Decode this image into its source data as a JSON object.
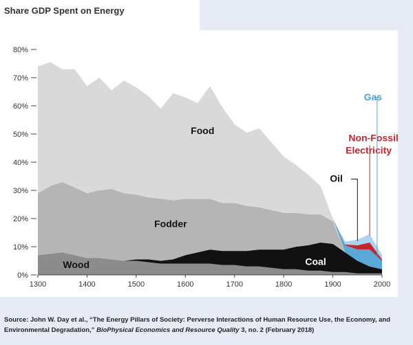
{
  "chart_data": {
    "type": "area",
    "title": "Share GDP Spent on Energy",
    "xlabel": "",
    "ylabel": "",
    "xlim": [
      1300,
      2000
    ],
    "ylim": [
      0,
      80
    ],
    "x_ticks": [
      1300,
      1400,
      1500,
      1600,
      1700,
      1800,
      1900,
      2000
    ],
    "y_ticks": [
      0,
      10,
      20,
      30,
      40,
      50,
      60,
      70,
      80
    ],
    "y_tick_labels": [
      "0%",
      "10%",
      "20%",
      "30%",
      "40%",
      "50%",
      "60%",
      "70%",
      "80%"
    ],
    "grid": false,
    "legend": "none",
    "stacked": true,
    "x": [
      1300,
      1325,
      1350,
      1375,
      1400,
      1425,
      1450,
      1475,
      1500,
      1525,
      1550,
      1575,
      1600,
      1625,
      1650,
      1675,
      1700,
      1725,
      1750,
      1775,
      1800,
      1825,
      1850,
      1875,
      1900,
      1925,
      1950,
      1975,
      2000
    ],
    "series": [
      {
        "name": "Wood",
        "color": "#8c8c8c",
        "values": [
          7,
          7.5,
          8,
          7,
          6,
          6,
          5.5,
          5,
          5,
          4.5,
          4,
          4,
          4,
          4,
          4,
          3.5,
          3.5,
          3,
          3,
          2.5,
          2,
          2,
          1.5,
          1.5,
          1,
          1,
          0.5,
          0.5,
          0.5
        ]
      },
      {
        "name": "Coal",
        "color": "#111111",
        "values": [
          0,
          0,
          0,
          0,
          0,
          0,
          0,
          0,
          0.5,
          1,
          1,
          1.5,
          3,
          4,
          5,
          5,
          5,
          5.5,
          6,
          6.5,
          7,
          8,
          9,
          10,
          10,
          7,
          4.5,
          2.5,
          1.5
        ]
      },
      {
        "name": "Fodder",
        "color": "#b5b5b5",
        "values": [
          22,
          24,
          25,
          24,
          23,
          24,
          25,
          24,
          23,
          22,
          22,
          21,
          20,
          19,
          18,
          17,
          17,
          16,
          15,
          14,
          13,
          12,
          11,
          10,
          8,
          0,
          0,
          0,
          0
        ]
      },
      {
        "name": "Food",
        "color": "#d9d9d9",
        "values": [
          45,
          44,
          40,
          42,
          38,
          40,
          35,
          40,
          38,
          36,
          32,
          38,
          36,
          34,
          40,
          34,
          28,
          26,
          28,
          24,
          20,
          17,
          14,
          10,
          1,
          0,
          0,
          0,
          0
        ]
      },
      {
        "name": "Oil",
        "color": "#5aa8d8",
        "values": [
          0,
          0,
          0,
          0,
          0,
          0,
          0,
          0,
          0,
          0,
          0,
          0,
          0,
          0,
          0,
          0,
          0,
          0,
          0,
          0,
          0,
          0,
          0,
          0,
          0,
          2.5,
          4,
          6,
          3
        ]
      },
      {
        "name": "Non-Fossil Electricity",
        "color": "#c0282d",
        "values": [
          0,
          0,
          0,
          0,
          0,
          0,
          0,
          0,
          0,
          0,
          0,
          0,
          0,
          0,
          0,
          0,
          0,
          0,
          0,
          0,
          0,
          0,
          0,
          0,
          0,
          0.3,
          1.5,
          2.5,
          0.5
        ]
      },
      {
        "name": "Gas",
        "color": "#a9d3ef",
        "values": [
          0,
          0,
          0,
          0,
          0,
          0,
          0,
          0,
          0,
          0,
          0,
          0,
          0,
          0,
          0,
          0,
          0,
          0,
          0,
          0,
          0,
          0,
          0,
          0,
          0,
          1,
          2,
          3,
          1.5
        ]
      }
    ],
    "annotations": [
      {
        "text": "Food",
        "color": "#111111"
      },
      {
        "text": "Fodder",
        "color": "#111111"
      },
      {
        "text": "Wood",
        "color": "#111111"
      },
      {
        "text": "Coal",
        "color": "#ffffff"
      },
      {
        "text": "Oil",
        "color": "#111111"
      },
      {
        "text": "Non-Fossil",
        "color": "#c0282d"
      },
      {
        "text": "Electricity",
        "color": "#c0282d"
      },
      {
        "text": "Gas",
        "color": "#4da2d6"
      }
    ]
  },
  "source": {
    "prefix": "Source: John W. Day et al., “The Energy Pillars of Society: Perverse Interactions of Human Resource Use, the Economy, and Environmental Degradation,” ",
    "journal": "BioPhysical Economics and Resource Quality",
    "suffix": " 3, no. 2 (February 2018)"
  }
}
